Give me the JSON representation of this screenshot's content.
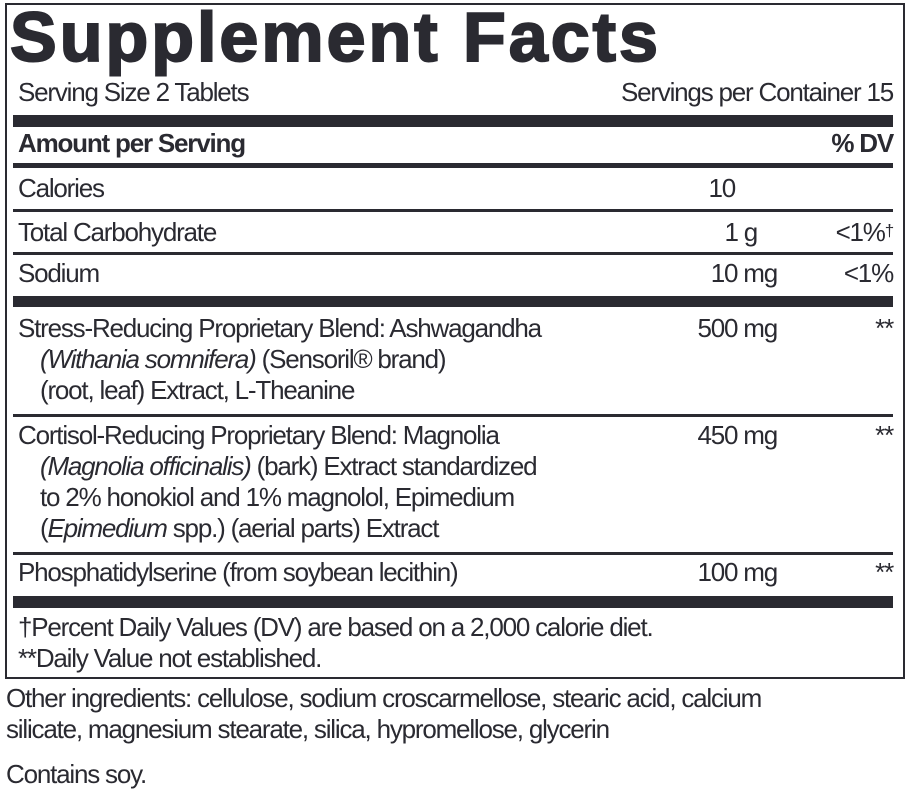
{
  "title": "Supplement Facts",
  "serving_size": "Serving Size 2 Tablets",
  "servings_per_container": "Servings per Container 15",
  "header": {
    "amount": "Amount per Serving",
    "dv": "% DV"
  },
  "nutrients": [
    {
      "name": "Calories",
      "amount": "10",
      "dv": ""
    },
    {
      "name": "Total Carbohydrate",
      "amount": "1 g",
      "dv": "<1%",
      "dv_mark": "†"
    },
    {
      "name": "Sodium",
      "amount": "10 mg",
      "dv": "<1%"
    }
  ],
  "blends": [
    {
      "line1": "Stress-Reducing Proprietary Blend: Ashwagandha",
      "line2_italic": "(Withania somnifera)",
      "line2_rest": " (Sensoril® brand)",
      "line3": "(root, leaf) Extract, L-Theanine",
      "amount": "500 mg",
      "dv": "**"
    },
    {
      "line1": "Cortisol-Reducing Proprietary Blend: Magnolia",
      "line2_italic": "(Magnolia officinalis)",
      "line2_rest": " (bark) Extract standardized",
      "line3": "to 2% honokiol and 1% magnolol, Epimedium",
      "line4_open": "(",
      "line4_italic": "Epimedium",
      "line4_rest": " spp.) (aerial parts) Extract",
      "amount": "450 mg",
      "dv": "**"
    },
    {
      "line1": "Phosphatidylserine (from soybean lecithin)",
      "amount": "100 mg",
      "dv": "**"
    }
  ],
  "footnotes": [
    "†Percent Daily Values (DV) are based on a 2,000 calorie diet.",
    "**Daily Value not established."
  ],
  "other_ingredients": [
    "Other ingredients: cellulose, sodium croscarmellose, stearic acid, calcium",
    "silicate, magnesium stearate, silica, hypromellose, glycerin"
  ],
  "allergen": "Contains soy.",
  "colors": {
    "ink": "#2a2a31"
  }
}
